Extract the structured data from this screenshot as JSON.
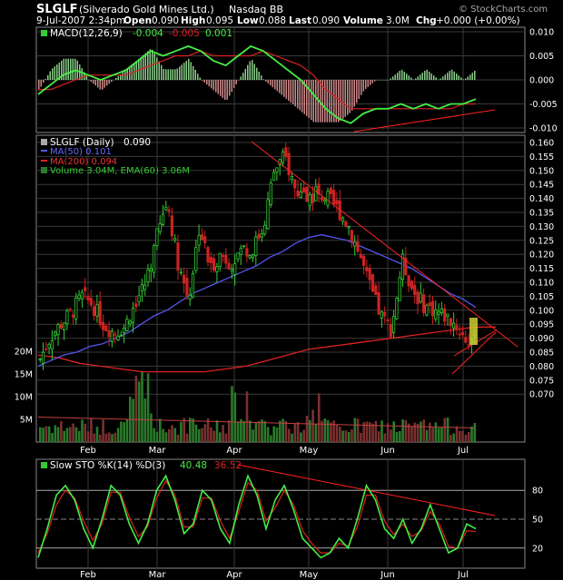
{
  "header": {
    "symbol": "SLGLF",
    "name": "(Silverado Gold Mines Ltd.)",
    "exchange": "Nasdaq BB",
    "watermark": "© StockCharts.com",
    "date_time": "9-Jul-2007 2:34pm",
    "open_label": "Open",
    "open": "0.090",
    "high_label": "High",
    "high": "0.095",
    "low_label": "Low",
    "low": "0.088",
    "last_label": "Last",
    "last": "0.090",
    "volume_label": "Volume",
    "volume": "3.0M",
    "chg_label": "Chg",
    "chg": "+0.000 (+0.00%)"
  },
  "macd_panel": {
    "legend_name": "MACD(12,26,9)",
    "legend_v1": "-0.004",
    "legend_v2": "-0.005",
    "legend_v3": "0.001",
    "ticks": [
      "0.010",
      "0.005",
      "0.000",
      "-0.005",
      "-0.010"
    ]
  },
  "price_panel": {
    "legend_name": "SLGLF (Daily)",
    "legend_value": "0.090",
    "ma50_label": "MA(50) 0.101",
    "ma200_label": "MA(200) 0.094",
    "volume_label": "Volume 3.04M, EMA(60) 3.06M",
    "price_ticks": [
      "0.160",
      "0.155",
      "0.150",
      "0.145",
      "0.140",
      "0.135",
      "0.130",
      "0.125",
      "0.120",
      "0.115",
      "0.110",
      "0.105",
      "0.100",
      "0.095",
      "0.090",
      "0.085",
      "0.080",
      "0.075",
      "0.070"
    ],
    "volume_ticks": [
      "20M",
      "15M",
      "10M",
      "5M"
    ]
  },
  "sto_panel": {
    "legend_name": "Slow STO %K(14) %D(3)",
    "legend_k": "40.48",
    "legend_d": "36.52",
    "ticks": [
      "80",
      "50",
      "20"
    ]
  },
  "months": [
    "Feb",
    "Mar",
    "Apr",
    "May",
    "Jun",
    "Jul"
  ],
  "colors": {
    "up": "#33cc33",
    "down": "#cc2222",
    "ma50": "#5555ee",
    "ma200": "#dd2222",
    "macd": "#44ee44",
    "signal": "#dd2222",
    "grid": "#3a3a3a",
    "trend": "#ff2222",
    "volume_up": "#2a7a2a",
    "volume_down": "#7a3030"
  },
  "chart_data": [
    {
      "type": "line",
      "title": "MACD(12,26,9)",
      "ylim": [
        -0.011,
        0.011
      ],
      "series": [
        {
          "name": "MACD",
          "values": [
            -0.003,
            -0.001,
            0.001,
            0.002,
            0.001,
            0.0,
            0.001,
            0.002,
            0.004,
            0.006,
            0.005,
            0.006,
            0.007,
            0.006,
            0.004,
            0.003,
            0.005,
            0.007,
            0.006,
            0.004,
            0.002,
            0.0,
            -0.003,
            -0.006,
            -0.008,
            -0.009,
            -0.007,
            -0.006,
            -0.006,
            -0.005,
            -0.006,
            -0.005,
            -0.006,
            -0.005,
            -0.005,
            -0.004
          ]
        },
        {
          "name": "Signal",
          "values": [
            -0.002,
            -0.002,
            -0.001,
            0.0,
            0.001,
            0.001,
            0.001,
            0.001,
            0.002,
            0.003,
            0.004,
            0.005,
            0.005,
            0.006,
            0.005,
            0.005,
            0.005,
            0.005,
            0.006,
            0.005,
            0.004,
            0.003,
            0.001,
            -0.002,
            -0.004,
            -0.006,
            -0.006,
            -0.006,
            -0.006,
            -0.006,
            -0.006,
            -0.006,
            -0.006,
            -0.006,
            -0.005,
            -0.005
          ]
        }
      ]
    },
    {
      "type": "line",
      "title": "SLGLF (Daily)",
      "ylim": [
        0.066,
        0.162
      ],
      "series": [
        {
          "name": "Close",
          "values": [
            0.082,
            0.09,
            0.095,
            0.099,
            0.105,
            0.102,
            0.095,
            0.092,
            0.094,
            0.103,
            0.11,
            0.126,
            0.139,
            0.117,
            0.104,
            0.13,
            0.115,
            0.12,
            0.117,
            0.122,
            0.122,
            0.13,
            0.15,
            0.155,
            0.143,
            0.14,
            0.142,
            0.14,
            0.136,
            0.13,
            0.12,
            0.108,
            0.098,
            0.093,
            0.118,
            0.107,
            0.102,
            0.1,
            0.098,
            0.095,
            0.089,
            0.09
          ]
        },
        {
          "name": "MA(50)",
          "values": [
            0.08,
            0.082,
            0.084,
            0.085,
            0.087,
            0.088,
            0.09,
            0.092,
            0.095,
            0.098,
            0.1,
            0.103,
            0.106,
            0.108,
            0.11,
            0.112,
            0.114,
            0.116,
            0.119,
            0.121,
            0.124,
            0.126,
            0.127,
            0.126,
            0.125,
            0.123,
            0.121,
            0.119,
            0.117,
            0.115,
            0.112,
            0.109,
            0.106,
            0.104,
            0.101
          ]
        },
        {
          "name": "MA(200)",
          "values": [
            0.084,
            0.083,
            0.081,
            0.08,
            0.079,
            0.078,
            0.078,
            0.078,
            0.078,
            0.079,
            0.08,
            0.082,
            0.084,
            0.086,
            0.087,
            0.088,
            0.089,
            0.09,
            0.091,
            0.092,
            0.093,
            0.094,
            0.094
          ]
        }
      ]
    },
    {
      "type": "line",
      "title": "Slow STO %K(14) %D(3)",
      "ylim": [
        0,
        100
      ],
      "series": [
        {
          "name": "%K",
          "values": [
            10,
            40,
            75,
            85,
            70,
            40,
            20,
            50,
            85,
            75,
            45,
            25,
            45,
            80,
            95,
            70,
            35,
            45,
            80,
            70,
            40,
            25,
            65,
            95,
            75,
            40,
            70,
            85,
            60,
            30,
            20,
            10,
            15,
            30,
            20,
            50,
            85,
            70,
            40,
            30,
            50,
            25,
            40,
            65,
            40,
            15,
            20,
            45,
            40
          ]
        },
        {
          "name": "%D",
          "values": [
            15,
            35,
            65,
            80,
            72,
            48,
            28,
            45,
            78,
            78,
            52,
            32,
            42,
            72,
            90,
            75,
            42,
            42,
            72,
            72,
            48,
            30,
            58,
            88,
            80,
            48,
            62,
            80,
            65,
            38,
            25,
            15,
            15,
            25,
            22,
            42,
            75,
            75,
            48,
            34,
            45,
            32,
            38,
            58,
            45,
            22,
            20,
            38,
            37
          ]
        }
      ]
    }
  ]
}
